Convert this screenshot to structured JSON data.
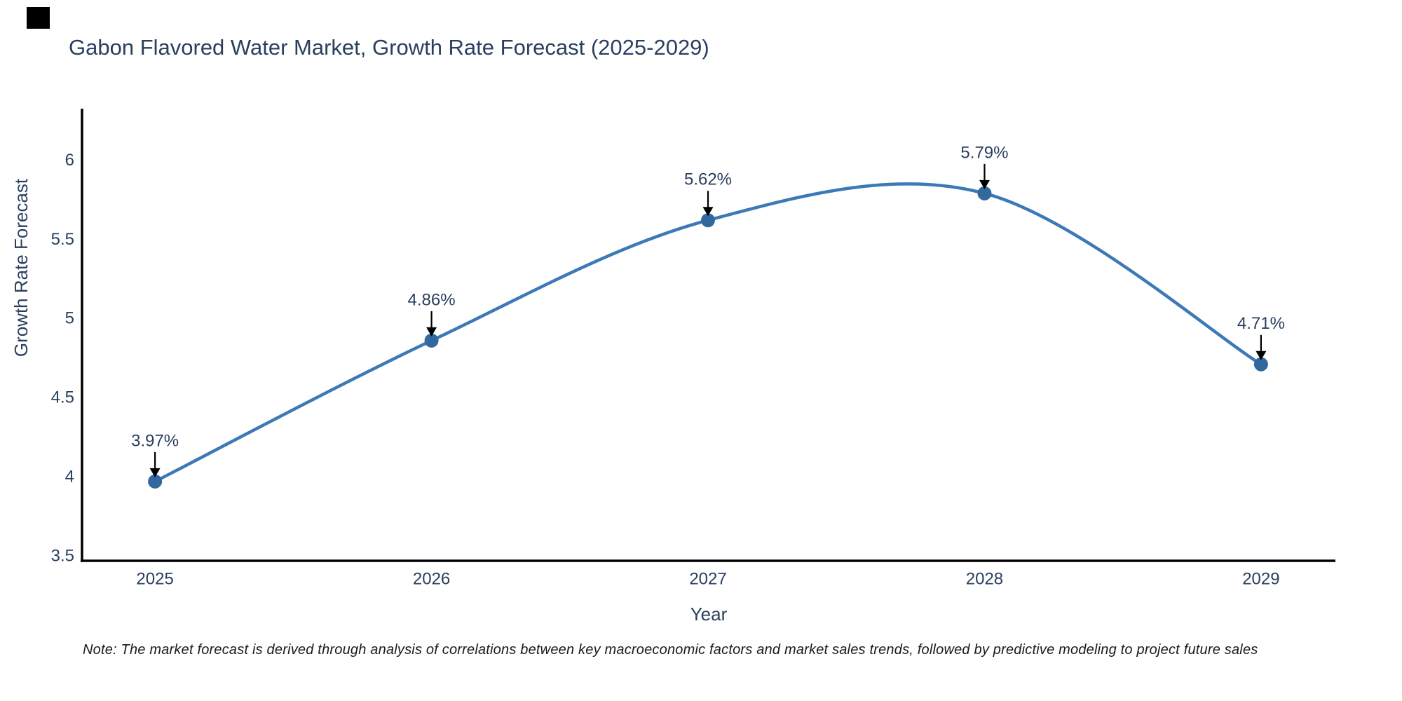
{
  "chart_data": {
    "type": "line",
    "title": "Gabon Flavored Water Market, Growth Rate Forecast (2025-2029)",
    "xlabel": "Year",
    "ylabel": "Growth Rate Forecast",
    "x": [
      2025,
      2026,
      2027,
      2028,
      2029
    ],
    "values": [
      3.97,
      4.86,
      5.62,
      5.79,
      4.71
    ],
    "point_labels": [
      "3.97%",
      "4.86%",
      "5.62%",
      "5.79%",
      "4.71%"
    ],
    "x_tick_labels": [
      "2025",
      "2026",
      "2027",
      "2028",
      "2029"
    ],
    "y_ticks": [
      3.5,
      4,
      4.5,
      5,
      5.5,
      6
    ],
    "y_tick_labels": [
      "3.5",
      "4",
      "4.5",
      "5",
      "5.5",
      "6"
    ],
    "xlim": [
      2024.736,
      2029.269
    ],
    "ylim": [
      3.469,
      6.325
    ],
    "curve": "spline",
    "grid": false,
    "legend": false,
    "note": "Note: The market forecast is derived through analysis of correlations between key macroeconomic factors and market sales trends, followed by predictive modeling to project future sales",
    "colors": {
      "line": "#3c79b6",
      "marker": "#32689e",
      "axis": "#000000",
      "tick_text": "#2a3f5f",
      "title_text": "#2a3f5f",
      "annotation_text": "#2a3f5f",
      "arrow": "#000000",
      "note_text": "#1a1a1a",
      "background": "#ffffff"
    }
  }
}
